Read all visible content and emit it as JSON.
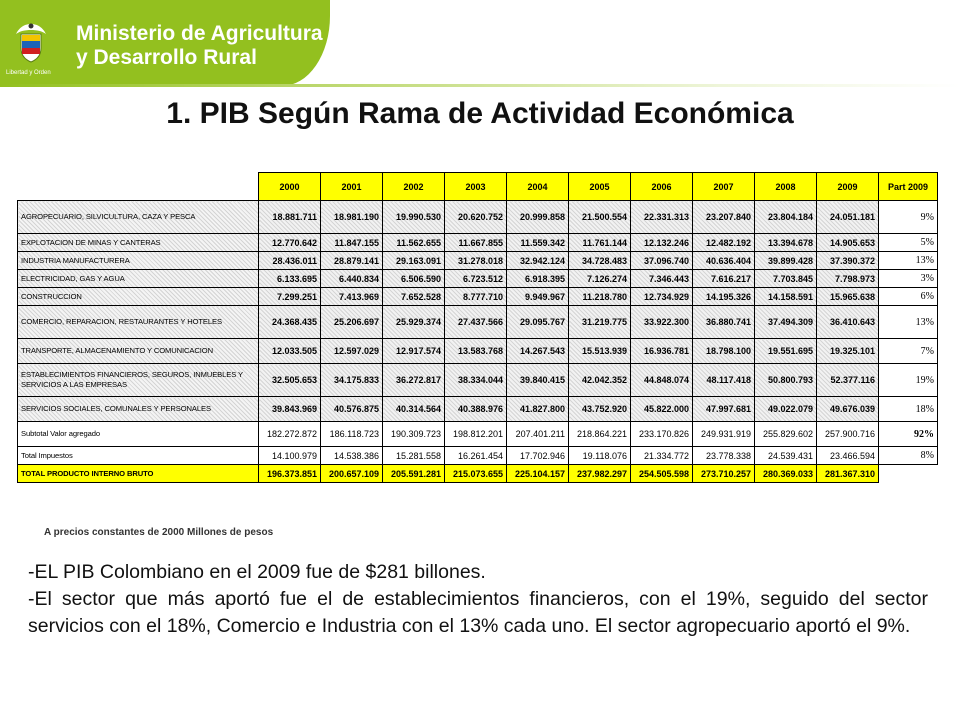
{
  "header": {
    "ministry_line1": "Ministerio de Agricultura",
    "ministry_line2": "y Desarrollo Rural",
    "crest_caption": "Libertad y Orden",
    "brand_color": "#93c01f"
  },
  "title": "1.  PIB Según Rama de Actividad Económica",
  "table": {
    "years": [
      "2000",
      "2001",
      "2002",
      "2003",
      "2004",
      "2005",
      "2006",
      "2007",
      "2008",
      "2009"
    ],
    "part_header": "Part 2009",
    "rows": [
      {
        "label": "AGROPECUARIO, SILVICULTURA, CAZA Y PESCA",
        "values": [
          "18.881.711",
          "18.981.190",
          "19.990.530",
          "20.620.752",
          "20.999.858",
          "21.500.554",
          "22.331.313",
          "23.207.840",
          "23.804.184",
          "24.051.181"
        ],
        "part": "9%"
      },
      {
        "label": "EXPLOTACION DE MINAS Y CANTERAS",
        "values": [
          "12.770.642",
          "11.847.155",
          "11.562.655",
          "11.667.855",
          "11.559.342",
          "11.761.144",
          "12.132.246",
          "12.482.192",
          "13.394.678",
          "14.905.653"
        ],
        "part": "5%"
      },
      {
        "label": "INDUSTRIA MANUFACTURERA",
        "values": [
          "28.436.011",
          "28.879.141",
          "29.163.091",
          "31.278.018",
          "32.942.124",
          "34.728.483",
          "37.096.740",
          "40.636.404",
          "39.899.428",
          "37.390.372"
        ],
        "part": "13%"
      },
      {
        "label": "ELECTRICIDAD, GAS Y AGUA",
        "values": [
          "6.133.695",
          "6.440.834",
          "6.506.590",
          "6.723.512",
          "6.918.395",
          "7.126.274",
          "7.346.443",
          "7.616.217",
          "7.703.845",
          "7.798.973"
        ],
        "part": "3%"
      },
      {
        "label": "CONSTRUCCION",
        "values": [
          "7.299.251",
          "7.413.969",
          "7.652.528",
          "8.777.710",
          "9.949.967",
          "11.218.780",
          "12.734.929",
          "14.195.326",
          "14.158.591",
          "15.965.638"
        ],
        "part": "6%"
      },
      {
        "label": "COMERCIO, REPARACION, RESTAURANTES Y HOTELES",
        "values": [
          "24.368.435",
          "25.206.697",
          "25.929.374",
          "27.437.566",
          "29.095.767",
          "31.219.775",
          "33.922.300",
          "36.880.741",
          "37.494.309",
          "36.410.643"
        ],
        "part": "13%"
      },
      {
        "label": "TRANSPORTE, ALMACENAMIENTO Y COMUNICACION",
        "values": [
          "12.033.505",
          "12.597.029",
          "12.917.574",
          "13.583.768",
          "14.267.543",
          "15.513.939",
          "16.936.781",
          "18.798.100",
          "19.551.695",
          "19.325.101"
        ],
        "part": "7%"
      },
      {
        "label": "ESTABLECIMIENTOS FINANCIEROS, SEGUROS, INMUEBLES Y SERVICIOS A LAS EMPRESAS",
        "values": [
          "32.505.653",
          "34.175.833",
          "36.272.817",
          "38.334.044",
          "39.840.415",
          "42.042.352",
          "44.848.074",
          "48.117.418",
          "50.800.793",
          "52.377.116"
        ],
        "part": "19%"
      },
      {
        "label": "SERVICIOS SOCIALES, COMUNALES Y PERSONALES",
        "values": [
          "39.843.969",
          "40.576.875",
          "40.314.564",
          "40.388.976",
          "41.827.800",
          "43.752.920",
          "45.822.000",
          "47.997.681",
          "49.022.079",
          "49.676.039"
        ],
        "part": "18%"
      },
      {
        "label": "Subtotal Valor agregado",
        "values": [
          "182.272.872",
          "186.118.723",
          "190.309.723",
          "198.812.201",
          "207.401.211",
          "218.864.221",
          "233.170.826",
          "249.931.919",
          "255.829.602",
          "257.900.716"
        ],
        "part": "92%",
        "style": "plain"
      },
      {
        "label": "Total Impuestos",
        "values": [
          "14.100.979",
          "14.538.386",
          "15.281.558",
          "16.261.454",
          "17.702.946",
          "19.118.076",
          "21.334.772",
          "23.778.338",
          "24.539.431",
          "23.466.594"
        ],
        "part": "8%",
        "style": "plain"
      },
      {
        "label": "TOTAL PRODUCTO INTERNO BRUTO",
        "values": [
          "196.373.851",
          "200.657.109",
          "205.591.281",
          "215.073.655",
          "225.104.157",
          "237.982.297",
          "254.505.598",
          "273.710.257",
          "280.369.033",
          "281.367.310"
        ],
        "part": "",
        "style": "total"
      }
    ]
  },
  "note": "A precios  constantes  de 2000   Millones de pesos",
  "bullets": [
    "-EL PIB Colombiano en el 2009 fue de $281 billones.",
    " -El sector que  más aportó fue el de establecimientos financieros, con el 19%, seguido del sector  servicios  con el 18%,  Comercio e  Industria con el 13% cada uno. El sector agropecuario aportó el 9%."
  ]
}
